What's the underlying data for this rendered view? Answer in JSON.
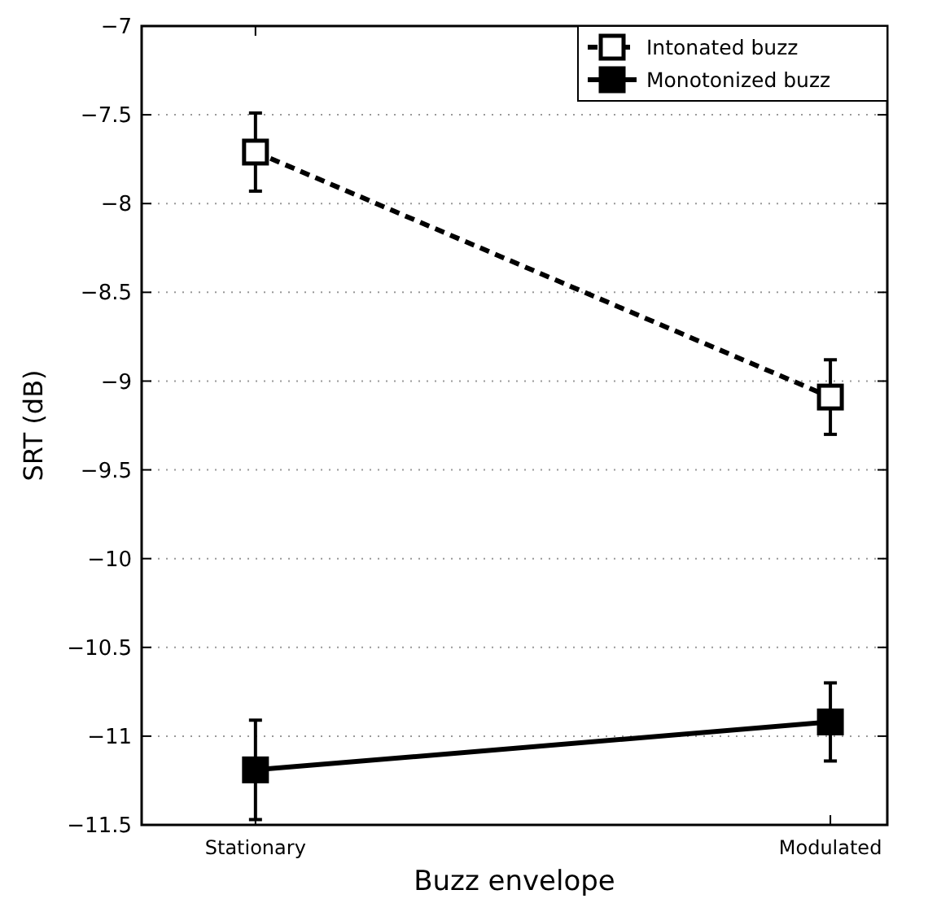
{
  "chart_data": {
    "type": "line",
    "xlabel": "Buzz envelope",
    "ylabel": "SRT (dB)",
    "categories": [
      "Stationary",
      "Modulated"
    ],
    "ylim": [
      -11.5,
      -7
    ],
    "yticks": [
      {
        "value": -11.5,
        "label": "−11.5"
      },
      {
        "value": -11,
        "label": "−11"
      },
      {
        "value": -10.5,
        "label": "−10.5"
      },
      {
        "value": -10,
        "label": "−10"
      },
      {
        "value": -9.5,
        "label": "−9.5"
      },
      {
        "value": -9,
        "label": "−9"
      },
      {
        "value": -8.5,
        "label": "−8.5"
      },
      {
        "value": -8,
        "label": "−8"
      },
      {
        "value": -7.5,
        "label": "−7.5"
      },
      {
        "value": -7,
        "label": "−7"
      }
    ],
    "grid": "y",
    "legend": "top right",
    "marker": "square",
    "series": [
      {
        "name": "Intonated buzz",
        "color": "#000000",
        "line_style": "dashed",
        "values": [
          -7.71,
          -9.09
        ],
        "errors": [
          0.22,
          0.21
        ]
      },
      {
        "name": "Monotonized buzz",
        "color": "#000000",
        "line_style": "solid",
        "values": [
          -11.19,
          -10.92
        ],
        "errors": [
          0.28,
          0.22
        ]
      }
    ]
  }
}
